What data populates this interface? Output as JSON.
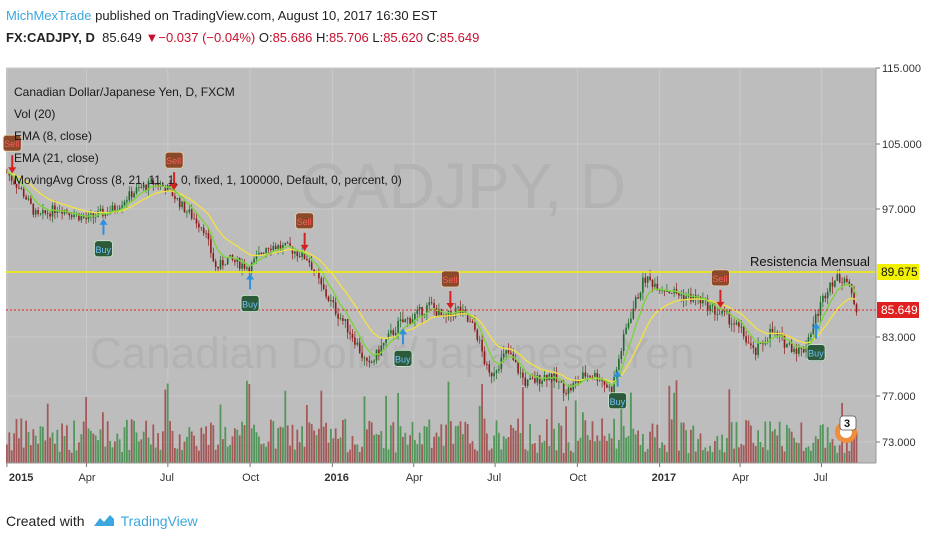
{
  "header": {
    "user": "MichMexTrade",
    "published": "published on TradingView.com, August 10, 2017 16:30 EST",
    "symbol": "FX:CADJPY, D",
    "last": "85.649",
    "change": "−0.037 (−0.04%)",
    "o_label": "O:",
    "o": "85.686",
    "h_label": "H:",
    "h": "85.706",
    "l_label": "L:",
    "l": "85.620",
    "c_label": "C:",
    "c": "85.649",
    "down_arrow_icon": "triangle-down-icon"
  },
  "indicators": [
    "Canadian Dollar/Japanese Yen, D, FXCM",
    "Vol (20)",
    "EMA (8, close)",
    "EMA (21, close)",
    "MovingAvg Cross (8, 21, 11, 1, 0, fixed, 1, 100000, Default, 0, percent, 0)"
  ],
  "watermark": {
    "symbol": "CADJPY, D",
    "name": "Canadian Dollar/Japanese Yen"
  },
  "annotations": {
    "resistance": "Resistencia Mensual",
    "resistance_price": "89.675",
    "last_price": "85.649",
    "buy": "Buy",
    "sell": "Sell",
    "badge": "3"
  },
  "footer": {
    "created": "Created with",
    "brand": "TradingView",
    "logo_icon": "tradingview-logo-icon"
  },
  "colors": {
    "plot_bg": "#bdbdbd",
    "grid": "#c9c9c9",
    "up": "#1b6b2a",
    "down": "#8b1a1a",
    "ema_fast": "#7cd33b",
    "ema_slow": "#f0e04a",
    "resistance": "#f2f200",
    "last_line": "#e02020",
    "buy": "#2f8fe0",
    "sell": "#d32020",
    "vol_up": "#3f8f4a",
    "vol_down": "#a04848"
  },
  "chart_data": {
    "type": "candlestick",
    "price_axis": {
      "ticks": [
        73.0,
        77.0,
        83.0,
        89.675,
        97.0,
        105.0,
        115.0
      ]
    },
    "x_ticks": [
      "2015",
      "Apr",
      "Jul",
      "Oct",
      "2016",
      "Apr",
      "Jul",
      "Oct",
      "2017",
      "Apr",
      "Jul"
    ],
    "resistance_level": 89.675,
    "last_price": 85.649,
    "close_path": [
      [
        "2015-01-02",
        101.5
      ],
      [
        "2015-01-20",
        99.0
      ],
      [
        "2015-02-05",
        96.0
      ],
      [
        "2015-03-01",
        97.2
      ],
      [
        "2015-04-01",
        95.8
      ],
      [
        "2015-05-01",
        97.0
      ],
      [
        "2015-05-25",
        99.2
      ],
      [
        "2015-06-15",
        100.2
      ],
      [
        "2015-07-01",
        99.5
      ],
      [
        "2015-07-20",
        97.0
      ],
      [
        "2015-08-10",
        94.8
      ],
      [
        "2015-08-24",
        90.0
      ],
      [
        "2015-09-05",
        91.2
      ],
      [
        "2015-10-01",
        90.2
      ],
      [
        "2015-10-20",
        92.8
      ],
      [
        "2015-11-15",
        92.4
      ],
      [
        "2015-12-05",
        91.2
      ],
      [
        "2015-12-20",
        88.0
      ],
      [
        "2016-01-05",
        85.6
      ],
      [
        "2016-01-25",
        83.0
      ],
      [
        "2016-02-10",
        79.8
      ],
      [
        "2016-02-25",
        82.0
      ],
      [
        "2016-03-15",
        84.2
      ],
      [
        "2016-04-05",
        85.2
      ],
      [
        "2016-04-20",
        86.2
      ],
      [
        "2016-05-05",
        84.6
      ],
      [
        "2016-05-20",
        85.8
      ],
      [
        "2016-06-10",
        83.5
      ],
      [
        "2016-06-24",
        79.0
      ],
      [
        "2016-07-15",
        81.5
      ],
      [
        "2016-08-05",
        78.2
      ],
      [
        "2016-08-30",
        79.2
      ],
      [
        "2016-09-20",
        77.5
      ],
      [
        "2016-10-10",
        79.2
      ],
      [
        "2016-10-25",
        79.0
      ],
      [
        "2016-11-08",
        77.5
      ],
      [
        "2016-11-25",
        84.0
      ],
      [
        "2016-12-15",
        89.0
      ],
      [
        "2017-01-05",
        88.0
      ],
      [
        "2017-01-25",
        87.2
      ],
      [
        "2017-02-15",
        86.7
      ],
      [
        "2017-03-05",
        85.5
      ],
      [
        "2017-03-20",
        84.8
      ],
      [
        "2017-04-05",
        83.2
      ],
      [
        "2017-04-17",
        81.2
      ],
      [
        "2017-05-05",
        83.5
      ],
      [
        "2017-05-25",
        82.2
      ],
      [
        "2017-06-10",
        81.5
      ],
      [
        "2017-06-25",
        85.0
      ],
      [
        "2017-07-10",
        88.6
      ],
      [
        "2017-07-27",
        89.2
      ],
      [
        "2017-08-10",
        85.649
      ]
    ],
    "signals": [
      {
        "date": "2015-01-08",
        "type": "sell"
      },
      {
        "date": "2015-04-20",
        "type": "buy"
      },
      {
        "date": "2015-07-08",
        "type": "sell"
      },
      {
        "date": "2015-10-01",
        "type": "buy"
      },
      {
        "date": "2015-12-01",
        "type": "sell"
      },
      {
        "date": "2016-03-20",
        "type": "buy"
      },
      {
        "date": "2016-05-12",
        "type": "sell"
      },
      {
        "date": "2016-11-15",
        "type": "buy"
      },
      {
        "date": "2017-03-10",
        "type": "sell"
      },
      {
        "date": "2017-06-25",
        "type": "buy"
      }
    ]
  }
}
